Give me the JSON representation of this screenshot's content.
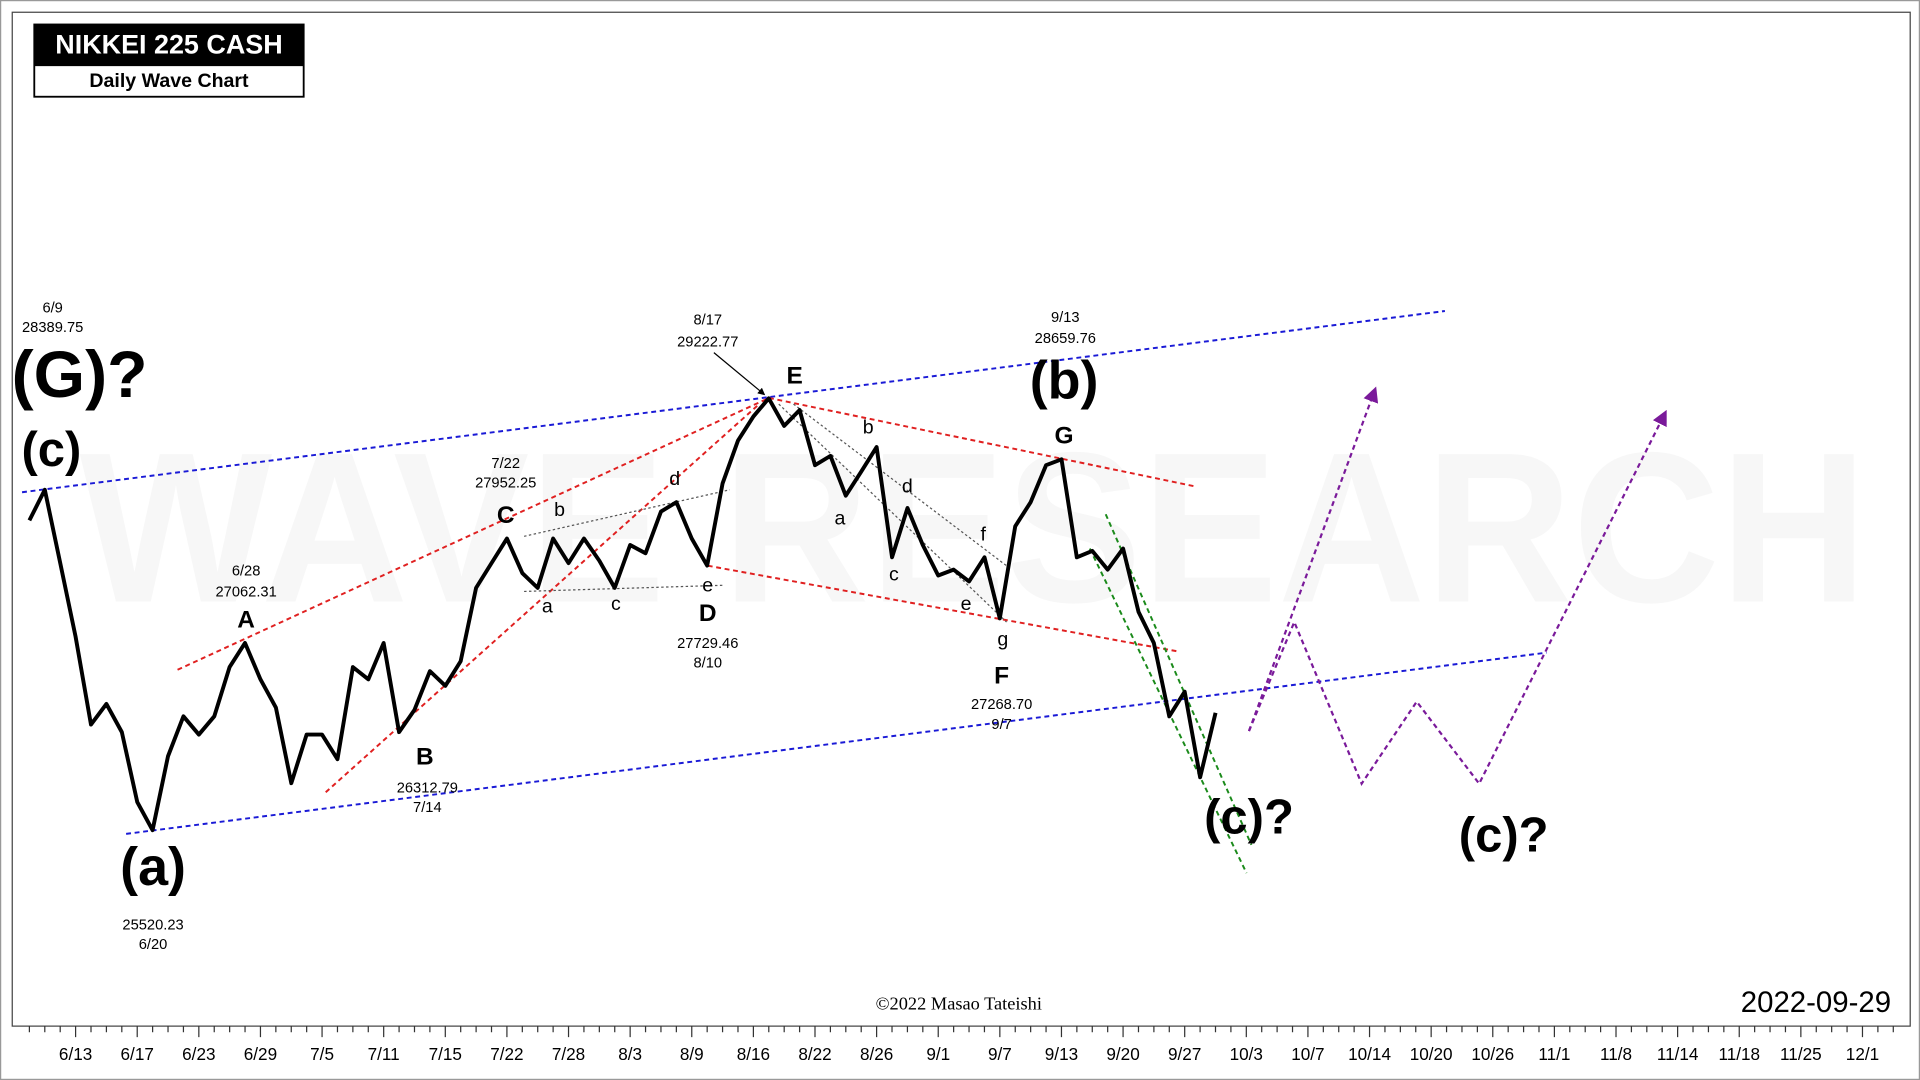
{
  "chart_data": {
    "type": "line",
    "title": "NIKKEI 225 CASH",
    "subtitle": "Daily Wave Chart",
    "watermark": "WAVE RESEARCH",
    "copyright": "©2022 Masao Tateishi",
    "date": "2022-09-29",
    "color": "#000000",
    "categories": [
      null,
      null,
      null,
      "6/13",
      null,
      null,
      null,
      "6/17",
      null,
      null,
      null,
      "6/23",
      null,
      null,
      null,
      "6/29",
      null,
      null,
      null,
      "7/5",
      null,
      null,
      null,
      "7/11",
      null,
      null,
      null,
      "7/15",
      null,
      null,
      null,
      "7/22",
      null,
      null,
      null,
      "7/28",
      null,
      null,
      null,
      "8/3",
      null,
      null,
      null,
      "8/9",
      null,
      null,
      null,
      "8/16",
      null,
      null,
      null,
      "8/22",
      null,
      null,
      null,
      "8/26",
      null,
      null,
      null,
      "9/1",
      null,
      null,
      null,
      "9/7",
      null,
      null,
      null,
      "9/13",
      null,
      null,
      null,
      "9/20",
      null,
      null,
      null,
      "9/27",
      null,
      null,
      null,
      "10/3",
      null,
      null,
      null,
      "10/7",
      null,
      null,
      null,
      "10/14",
      null,
      null,
      null,
      "10/20",
      null,
      null,
      null,
      "10/26",
      null,
      null,
      null,
      "11/1",
      null,
      null,
      null,
      "11/8",
      null,
      null,
      null,
      "11/14",
      null,
      null,
      null,
      "11/18",
      null,
      null,
      null,
      "11/25",
      null,
      null,
      null,
      "12/1",
      null,
      null
    ],
    "values": [
      28180,
      28440,
      27815,
      27190,
      26440,
      26615,
      26375,
      25780,
      25540,
      26170,
      26510,
      26355,
      26510,
      26930,
      27135,
      26825,
      26585,
      25940,
      26355,
      26355,
      26145,
      26930,
      26825,
      27135,
      26375,
      26565,
      26895,
      26770,
      26980,
      27605,
      27815,
      28025,
      27730,
      27605,
      28025,
      27815,
      28025,
      27835,
      27605,
      27970,
      27900,
      28255,
      28335,
      28025,
      27795,
      28495,
      28860,
      29065,
      29220,
      28985,
      29120,
      28650,
      28730,
      28390,
      28595,
      28805,
      27865,
      28285,
      27970,
      27710,
      27760,
      27660,
      27865,
      27345,
      28130,
      28335,
      28650,
      28700,
      27865,
      27920,
      27760,
      27940,
      27400,
      27135,
      26510,
      26720,
      25990,
      26540,
      null,
      null,
      null,
      null,
      null,
      null,
      null,
      null,
      null,
      null,
      null,
      null,
      null,
      null,
      null,
      null,
      null,
      null,
      null,
      null,
      null,
      null,
      null,
      null,
      null,
      null,
      null,
      null,
      null,
      null,
      null,
      null,
      null,
      null,
      null,
      null,
      null,
      null,
      null,
      null,
      null,
      null,
      null,
      null
    ],
    "ylim": [
      23870,
      32510
    ],
    "annotations": [
      "6/9",
      "28389.75",
      "(G)?",
      "(c)",
      "6/28",
      "27062.31",
      "A",
      "7/22",
      "27952.25",
      "C",
      "B",
      "26312.79",
      "7/14",
      "(a)",
      "25520.23",
      "6/20",
      "8/17",
      "29222.77",
      "E",
      "D",
      "27729.46",
      "8/10",
      "b",
      "a",
      "c",
      "d",
      "e",
      "b",
      "a",
      "d",
      "c",
      "f",
      "e",
      "g",
      "F",
      "27268.70",
      "9/7",
      "9/13",
      "28659.76",
      "(b)",
      "G",
      "(c)?",
      "(c)?"
    ]
  }
}
